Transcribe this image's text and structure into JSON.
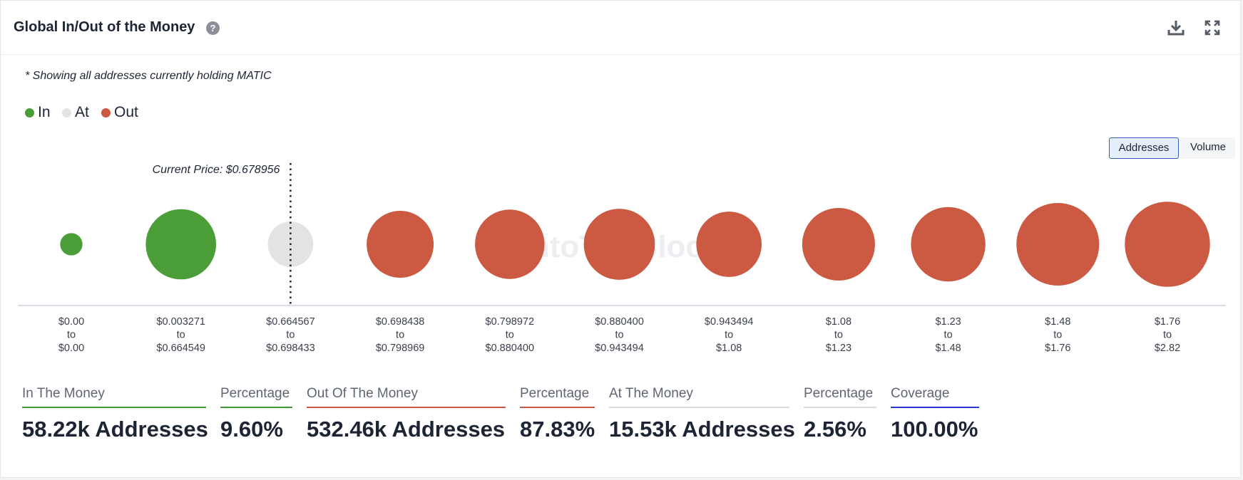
{
  "header": {
    "title": "Global In/Out of the Money",
    "help_icon": "question-circle-icon",
    "download_icon": "download-icon",
    "expand_icon": "expand-icon"
  },
  "note": "* Showing all addresses currently holding MATIC",
  "legend": [
    {
      "label": "In",
      "color": "#4a9d37"
    },
    {
      "label": "At",
      "color": "#e3e3e3"
    },
    {
      "label": "Out",
      "color": "#cc5942"
    }
  ],
  "toggles": {
    "addresses": "Addresses",
    "volume": "Volume",
    "selected": "addresses"
  },
  "watermark": "IntoTheBlock",
  "chart_data": {
    "type": "bubble",
    "current_price_label": "Current Price: $0.678956",
    "current_price_bucket_index": 2,
    "categories": [
      {
        "from": "$0.00",
        "to": "$0.00",
        "status": "in",
        "relative_size": 0.27
      },
      {
        "from": "$0.003271",
        "to": "$0.664549",
        "status": "in",
        "relative_size": 0.85
      },
      {
        "from": "$0.664567",
        "to": "$0.698433",
        "status": "at",
        "relative_size": 0.55
      },
      {
        "from": "$0.698438",
        "to": "$0.798969",
        "status": "out",
        "relative_size": 0.81
      },
      {
        "from": "$0.798972",
        "to": "$0.880400",
        "status": "out",
        "relative_size": 0.84
      },
      {
        "from": "$0.880400",
        "to": "$0.943494",
        "status": "out",
        "relative_size": 0.86
      },
      {
        "from": "$0.943494",
        "to": "$1.08",
        "status": "out",
        "relative_size": 0.79
      },
      {
        "from": "$1.08",
        "to": "$1.23",
        "status": "out",
        "relative_size": 0.88
      },
      {
        "from": "$1.23",
        "to": "$1.48",
        "status": "out",
        "relative_size": 0.9
      },
      {
        "from": "$1.48",
        "to": "$1.76",
        "status": "out",
        "relative_size": 1.0
      },
      {
        "from": "$1.76",
        "to": "$2.82",
        "status": "out",
        "relative_size": 1.03
      }
    ],
    "range_joiner": "to",
    "colors": {
      "in": "#4a9d37",
      "at": "#e3e3e3",
      "out": "#cc5942"
    }
  },
  "stats": [
    {
      "label": "In The Money",
      "value": "58.22k Addresses",
      "color": "#3f9a34"
    },
    {
      "label": "Percentage",
      "value": "9.60%",
      "color": "#3f9a34"
    },
    {
      "label": "Out Of The Money",
      "value": "532.46k Addresses",
      "color": "#c9573f"
    },
    {
      "label": "Percentage",
      "value": "87.83%",
      "color": "#c9573f"
    },
    {
      "label": "At The Money",
      "value": "15.53k Addresses",
      "color": "#dcdcdc"
    },
    {
      "label": "Percentage",
      "value": "2.56%",
      "color": "#dcdcdc"
    },
    {
      "label": "Coverage",
      "value": "100.00%",
      "color": "#2b36cc"
    }
  ]
}
